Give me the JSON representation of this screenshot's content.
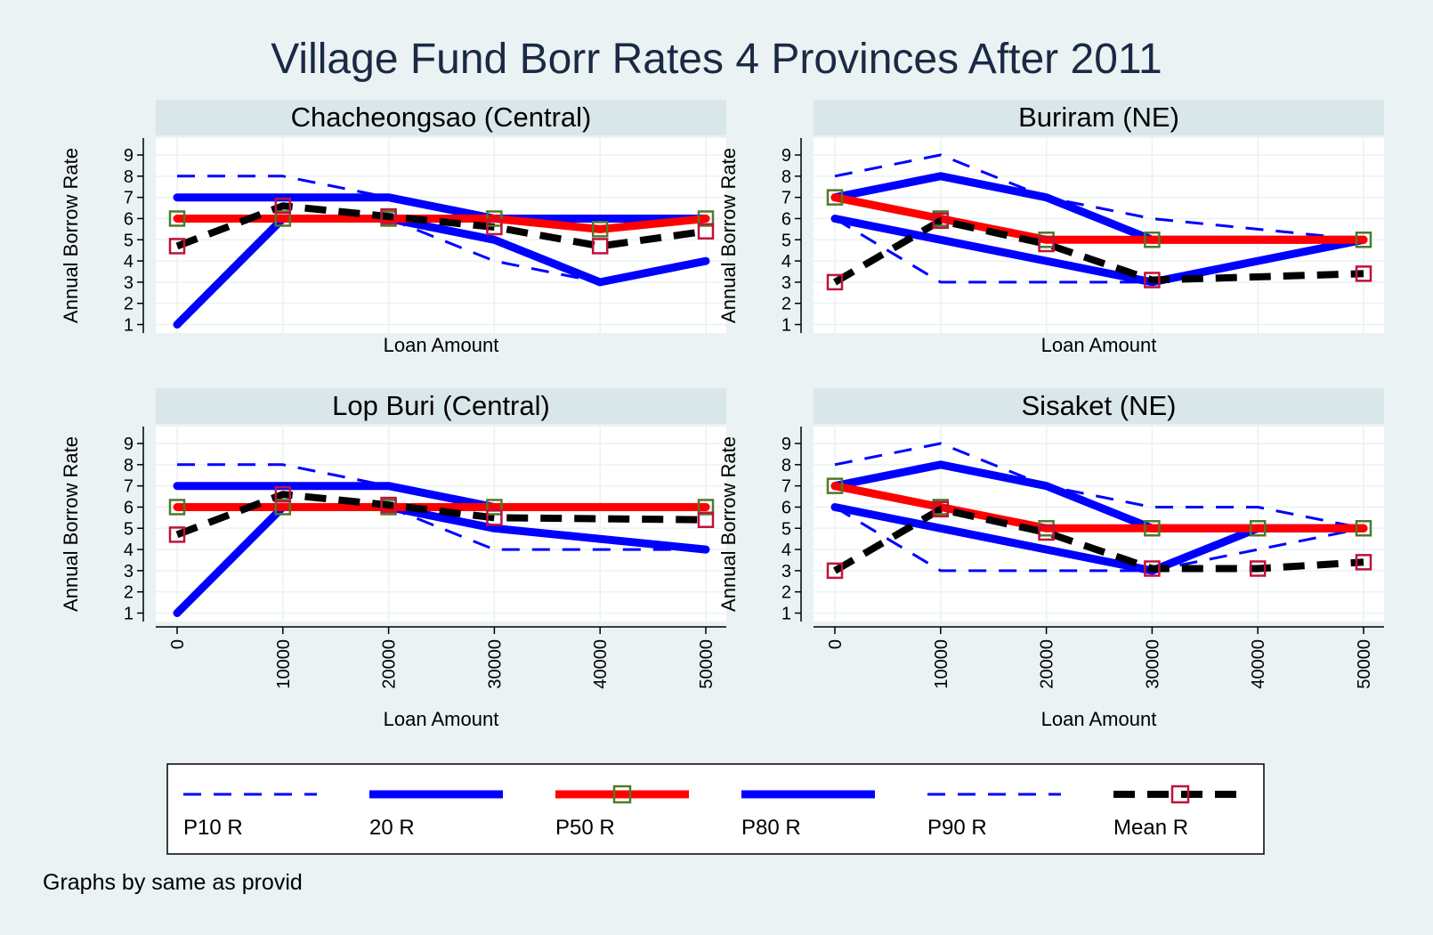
{
  "chart_data": {
    "type": "line",
    "title": "Village Fund Borr Rates 4 Provinces After 2011",
    "note": "Graphs by same as provid",
    "xlabel": "Loan Amount",
    "ylabel": "Annual Borrow Rate",
    "x_ticks": [
      0,
      10000,
      20000,
      30000,
      40000,
      50000
    ],
    "y_ticks": [
      1,
      2,
      3,
      4,
      5,
      6,
      7,
      8,
      9
    ],
    "xlim": [
      0,
      50000
    ],
    "ylim": [
      0.6,
      9.8
    ],
    "grid": true,
    "legend_position": "bottom",
    "legend": [
      {
        "label": "P10 R",
        "series": "p10"
      },
      {
        "label": "20 R",
        "series": "p20"
      },
      {
        "label": "P50 R",
        "series": "p50"
      },
      {
        "label": "P80 R",
        "series": "p80"
      },
      {
        "label": "P90 R",
        "series": "p90"
      },
      {
        "label": "Mean R",
        "series": "mean"
      }
    ],
    "styles": {
      "p10": {
        "color": "#0000ff",
        "width": 3,
        "dash": "20,14",
        "marker": "none"
      },
      "p20": {
        "color": "#0000ff",
        "width": 9,
        "dash": "",
        "marker": "none"
      },
      "p50": {
        "color": "#ff0000",
        "width": 9,
        "dash": "",
        "marker": "square-green"
      },
      "p80": {
        "color": "#0000ff",
        "width": 9,
        "dash": "",
        "marker": "none"
      },
      "p90": {
        "color": "#0000ff",
        "width": 3,
        "dash": "20,14",
        "marker": "none"
      },
      "mean": {
        "color": "#000000",
        "width": 8,
        "dash": "24,14",
        "marker": "square-red"
      }
    },
    "colors": {
      "background": "#eaf2f3",
      "plot": "#ffffff",
      "panel_header": "#d9e6ea",
      "grid": "#eaf2f3",
      "marker_green": "#4e7a2a",
      "marker_red": "#c0123c"
    },
    "panels": [
      {
        "name": "Chacheongsao (Central)",
        "series": {
          "p10": {
            "x": [
              0,
              10000,
              20000,
              30000,
              40000
            ],
            "y": [
              6,
              6,
              6,
              4,
              3
            ]
          },
          "p20": {
            "x": [
              0,
              10000,
              20000,
              30000,
              40000,
              50000
            ],
            "y": [
              1,
              6,
              6,
              5,
              3,
              4
            ]
          },
          "p50": {
            "x": [
              0,
              10000,
              20000,
              30000,
              40000,
              50000
            ],
            "y": [
              6,
              6,
              6,
              6,
              5.5,
              6
            ]
          },
          "p80": {
            "x": [
              0,
              10000,
              20000,
              30000,
              40000,
              50000
            ],
            "y": [
              7,
              7,
              7,
              6,
              6,
              6
            ]
          },
          "p90": {
            "x": [
              0,
              10000,
              20000,
              30000,
              40000,
              50000
            ],
            "y": [
              8,
              8,
              7,
              6,
              6,
              6
            ]
          },
          "mean": {
            "x": [
              0,
              10000,
              20000,
              30000,
              40000,
              50000
            ],
            "y": [
              4.7,
              6.6,
              6.1,
              5.6,
              4.7,
              5.4
            ]
          }
        }
      },
      {
        "name": "Buriram (NE)",
        "series": {
          "p10": {
            "x": [
              0,
              10000,
              20000,
              30000
            ],
            "y": [
              6,
              3,
              3,
              3
            ]
          },
          "p20": {
            "x": [
              0,
              30000,
              50000
            ],
            "y": [
              6,
              3,
              5
            ]
          },
          "p50": {
            "x": [
              0,
              10000,
              20000,
              30000,
              50000
            ],
            "y": [
              7,
              6,
              5,
              5,
              5
            ]
          },
          "p80": {
            "x": [
              0,
              10000,
              20000,
              30000,
              50000
            ],
            "y": [
              7,
              8,
              7,
              5,
              5
            ]
          },
          "p90": {
            "x": [
              0,
              10000,
              20000,
              30000,
              50000
            ],
            "y": [
              8,
              9,
              7,
              6,
              5
            ]
          },
          "mean": {
            "x": [
              0,
              10000,
              20000,
              30000,
              50000
            ],
            "y": [
              3,
              5.9,
              4.8,
              3.1,
              3.4
            ]
          }
        }
      },
      {
        "name": "Lop Buri (Central)",
        "series": {
          "p10": {
            "x": [
              0,
              10000,
              20000,
              30000,
              50000
            ],
            "y": [
              6,
              6,
              6,
              4,
              4
            ]
          },
          "p20": {
            "x": [
              0,
              10000,
              20000,
              30000,
              50000
            ],
            "y": [
              1,
              6,
              6,
              5,
              4
            ]
          },
          "p50": {
            "x": [
              0,
              10000,
              20000,
              30000,
              50000
            ],
            "y": [
              6,
              6,
              6,
              6,
              6
            ]
          },
          "p80": {
            "x": [
              0,
              10000,
              20000,
              30000,
              50000
            ],
            "y": [
              7,
              7,
              7,
              6,
              6
            ]
          },
          "p90": {
            "x": [
              0,
              10000,
              20000,
              30000,
              50000
            ],
            "y": [
              8,
              8,
              7,
              6,
              6
            ]
          },
          "mean": {
            "x": [
              0,
              10000,
              20000,
              30000,
              50000
            ],
            "y": [
              4.7,
              6.6,
              6.1,
              5.5,
              5.4
            ]
          }
        }
      },
      {
        "name": "Sisaket (NE)",
        "series": {
          "p10": {
            "x": [
              0,
              10000,
              20000,
              30000,
              40000,
              50000
            ],
            "y": [
              6,
              3,
              3,
              3,
              4,
              5
            ]
          },
          "p20": {
            "x": [
              0,
              30000,
              40000,
              50000
            ],
            "y": [
              6,
              3,
              5,
              5
            ]
          },
          "p50": {
            "x": [
              0,
              10000,
              20000,
              30000,
              40000,
              50000
            ],
            "y": [
              7,
              6,
              5,
              5,
              5,
              5
            ]
          },
          "p80": {
            "x": [
              0,
              10000,
              20000,
              30000,
              40000,
              50000
            ],
            "y": [
              7,
              8,
              7,
              5,
              5,
              5
            ]
          },
          "p90": {
            "x": [
              0,
              10000,
              20000,
              30000,
              40000,
              50000
            ],
            "y": [
              8,
              9,
              7,
              6,
              6,
              5
            ]
          },
          "mean": {
            "x": [
              0,
              10000,
              20000,
              30000,
              40000,
              50000
            ],
            "y": [
              3,
              5.9,
              4.8,
              3.1,
              3.1,
              3.4
            ]
          }
        }
      }
    ]
  }
}
